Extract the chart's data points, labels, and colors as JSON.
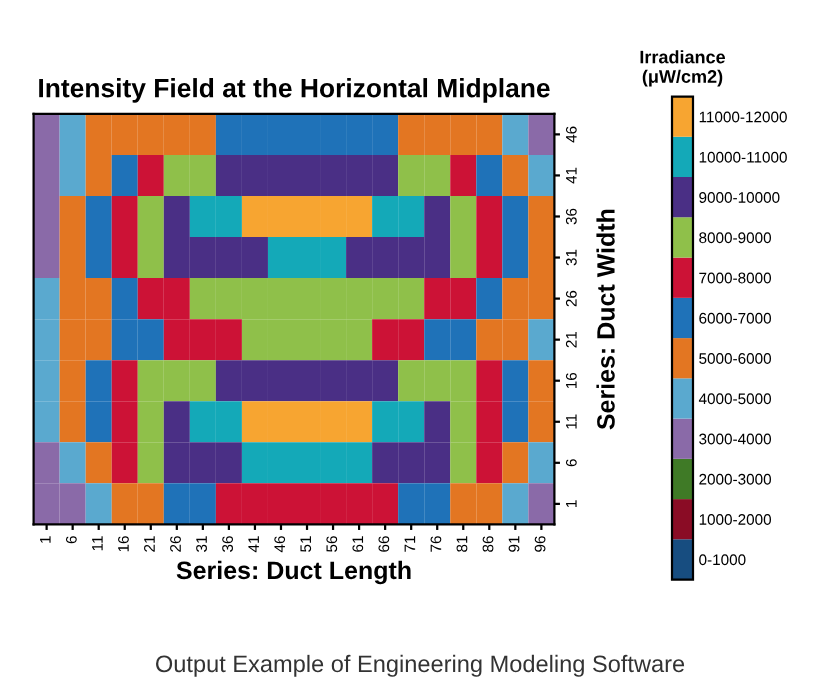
{
  "chart_data": {
    "type": "heatmap",
    "title": "Intensity Field at the Horizontal Midplane",
    "xlabel": "Series: Duct Length",
    "ylabel": "Series: Duct Width",
    "legend_title": "Irradiance\n(μW/cm2)",
    "annotations": [
      "Output Example of Engineering Modeling Software"
    ],
    "categories": [
      "1",
      "6",
      "11",
      "16",
      "21",
      "26",
      "31",
      "36",
      "41",
      "46",
      "51",
      "56",
      "61",
      "66",
      "71",
      "76",
      "81",
      "86",
      "91",
      "96"
    ],
    "y_categories": [
      "46",
      "41",
      "36",
      "31",
      "26",
      "21",
      "16",
      "11",
      "6",
      "1"
    ],
    "cells": [
      [
        3500,
        4500,
        5500,
        5500,
        5500,
        5500,
        5500,
        6500,
        6500,
        6500,
        6500,
        6500,
        6500,
        6500,
        5500,
        5500,
        5500,
        5500,
        4500,
        3500
      ],
      [
        3500,
        4500,
        5500,
        6500,
        7500,
        8500,
        8500,
        9500,
        9500,
        9500,
        9500,
        9500,
        9500,
        9500,
        8500,
        8500,
        7500,
        6500,
        5500,
        4500
      ],
      [
        3500,
        5500,
        6500,
        7500,
        8500,
        9500,
        10500,
        10500,
        11500,
        11500,
        11500,
        11500,
        11500,
        10500,
        10500,
        9500,
        8500,
        7500,
        6500,
        5500
      ],
      [
        3500,
        5500,
        6500,
        7500,
        8500,
        9500,
        9500,
        9500,
        9500,
        10500,
        10500,
        10500,
        9500,
        9500,
        9500,
        9500,
        8500,
        7500,
        6500,
        5500
      ],
      [
        4500,
        5500,
        5500,
        6500,
        7500,
        7500,
        8500,
        8500,
        8500,
        8500,
        8500,
        8500,
        8500,
        8500,
        8500,
        7500,
        7500,
        6500,
        5500,
        5500
      ],
      [
        4500,
        5500,
        5500,
        6500,
        6500,
        7500,
        7500,
        7500,
        8500,
        8500,
        8500,
        8500,
        8500,
        7500,
        7500,
        6500,
        6500,
        5500,
        5500,
        4500
      ],
      [
        4500,
        5500,
        6500,
        7500,
        8500,
        8500,
        8500,
        9500,
        9500,
        9500,
        9500,
        9500,
        9500,
        9500,
        8500,
        8500,
        8500,
        7500,
        6500,
        5500
      ],
      [
        4500,
        5500,
        6500,
        7500,
        8500,
        9500,
        10500,
        10500,
        11500,
        11500,
        11500,
        11500,
        11500,
        10500,
        10500,
        9500,
        8500,
        7500,
        6500,
        5500
      ],
      [
        3500,
        4500,
        5500,
        7500,
        8500,
        9500,
        9500,
        9500,
        10500,
        10500,
        10500,
        10500,
        10500,
        9500,
        9500,
        9500,
        8500,
        7500,
        5500,
        4500
      ],
      [
        3500,
        3500,
        4500,
        5500,
        5500,
        6500,
        6500,
        7500,
        7500,
        7500,
        7500,
        7500,
        7500,
        7500,
        6500,
        6500,
        5500,
        5500,
        4500,
        3500
      ]
    ],
    "clim": [
      0,
      12000
    ],
    "colors": [
      "#174d80",
      "#8a0c25",
      "#3f7a26",
      "#8a6aa8",
      "#5aa9cf",
      "#e37622",
      "#1f72b8",
      "#cc1236",
      "#8fc04a",
      "#4a2f85",
      "#14a9b8",
      "#f7a531"
    ],
    "cticks": [
      {
        "value": 500,
        "label": "0-1000"
      },
      {
        "value": 1500,
        "label": "1000-2000"
      },
      {
        "value": 2500,
        "label": "2000-3000"
      },
      {
        "value": 3500,
        "label": "3000-4000"
      },
      {
        "value": 4500,
        "label": "4000-5000"
      },
      {
        "value": 5500,
        "label": "5000-6000"
      },
      {
        "value": 6500,
        "label": "6000-7000"
      },
      {
        "value": 7500,
        "label": "7000-8000"
      },
      {
        "value": 8500,
        "label": "8000-9000"
      },
      {
        "value": 9500,
        "label": "9000-10000"
      },
      {
        "value": 10500,
        "label": "10000-11000"
      },
      {
        "value": 11500,
        "label": "11000-12000"
      }
    ]
  }
}
